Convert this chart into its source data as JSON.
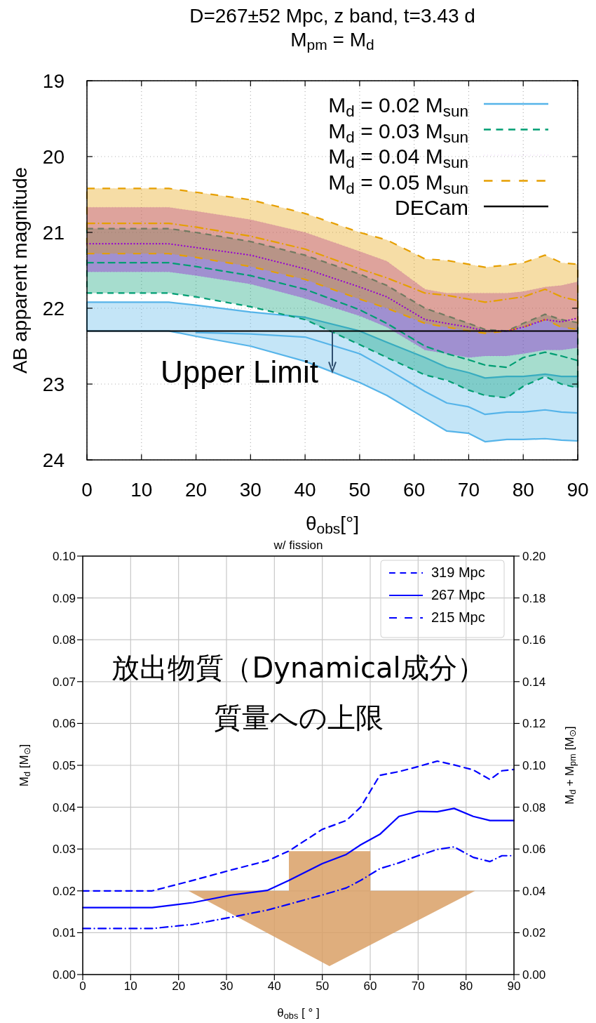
{
  "chart_data": [
    {
      "type": "line",
      "title": "D=267±52 Mpc, z band, t=3.43 d",
      "subtitle": "M$_{pm}$ = M$_{d}$",
      "xlabel": "θ$_{obs}$[°]",
      "ylabel": "AB apparent magnitude",
      "x": [
        0,
        15,
        20,
        30,
        40,
        50,
        55,
        62,
        66,
        70,
        73,
        77,
        80,
        84,
        87,
        90
      ],
      "xlim": [
        0,
        90
      ],
      "xticks": [
        0,
        10,
        20,
        30,
        40,
        50,
        60,
        70,
        80,
        90
      ],
      "ylim": [
        24,
        19
      ],
      "yticks": [
        19,
        20,
        21,
        22,
        23,
        24
      ],
      "grid": true,
      "legend": "top right",
      "series": [
        {
          "name": "M$_{d}$ = 0.02 M$_{sun}$",
          "color": "#56b4e9",
          "line_style": "solid",
          "values": [
            null,
            null,
            22.32,
            22.34,
            22.38,
            22.6,
            22.8,
            23.1,
            23.25,
            23.3,
            23.4,
            23.37,
            23.37,
            23.34,
            23.37,
            23.38
          ],
          "lower": [
            21.92,
            21.92,
            21.96,
            22.05,
            22.12,
            22.3,
            22.45,
            22.65,
            22.78,
            22.85,
            22.92,
            22.9,
            22.9,
            22.87,
            22.9,
            22.9
          ],
          "upper": [
            22.3,
            22.3,
            22.37,
            22.5,
            22.7,
            22.98,
            23.15,
            23.45,
            23.62,
            23.65,
            23.76,
            23.73,
            23.73,
            23.72,
            23.74,
            23.75
          ]
        },
        {
          "name": "M$_{d}$ = 0.03 M$_{sun}$",
          "color": "#009e73",
          "line_style": "dashed",
          "values": [
            21.4,
            21.4,
            21.45,
            21.57,
            21.75,
            22.02,
            22.2,
            22.5,
            22.6,
            22.68,
            22.75,
            22.78,
            22.65,
            22.58,
            22.63,
            22.69
          ],
          "lower": [
            20.95,
            20.95,
            21.0,
            21.12,
            21.3,
            21.55,
            21.7,
            22.0,
            22.1,
            22.2,
            22.28,
            22.3,
            22.2,
            22.08,
            22.15,
            22.19
          ],
          "upper": [
            21.8,
            21.8,
            21.85,
            21.98,
            22.15,
            22.48,
            22.65,
            22.88,
            22.95,
            23.08,
            23.15,
            23.18,
            23.03,
            22.9,
            23.0,
            23.05
          ]
        },
        {
          "name": "M$_{d}$ = 0.04 M$_{sun}$",
          "color": "#9400d3",
          "line_style": "dotted",
          "values": [
            21.15,
            21.15,
            21.2,
            21.3,
            21.48,
            21.72,
            21.85,
            22.15,
            22.2,
            22.25,
            22.3,
            22.3,
            22.25,
            22.15,
            22.18,
            22.13
          ],
          "lower": [
            20.67,
            20.67,
            20.72,
            20.83,
            21.0,
            21.25,
            21.38,
            21.75,
            21.8,
            21.8,
            21.8,
            21.8,
            21.78,
            21.72,
            21.7,
            21.65
          ],
          "upper": [
            21.52,
            21.52,
            21.57,
            21.68,
            21.87,
            22.1,
            22.25,
            22.55,
            22.6,
            22.65,
            22.63,
            22.63,
            22.6,
            22.55,
            22.55,
            22.52
          ]
        },
        {
          "name": "M$_{d}$ = 0.05 M$_{sun}$",
          "color": "#e69f00",
          "line_style": "dashdot",
          "values": [
            20.88,
            20.88,
            20.93,
            21.05,
            21.22,
            21.48,
            21.6,
            21.8,
            21.83,
            21.88,
            21.92,
            21.88,
            21.85,
            21.75,
            21.85,
            21.9
          ],
          "lower": [
            20.42,
            20.42,
            20.47,
            20.57,
            20.75,
            21.0,
            21.1,
            21.35,
            21.37,
            21.42,
            21.46,
            21.43,
            21.4,
            21.3,
            21.4,
            21.42
          ],
          "upper": [
            21.28,
            21.28,
            21.33,
            21.45,
            21.62,
            21.88,
            22.0,
            22.2,
            22.25,
            22.3,
            22.33,
            22.3,
            22.25,
            22.15,
            22.25,
            22.28
          ]
        }
      ],
      "ref_lines": [
        {
          "axis": "y",
          "value": 22.3,
          "label": "DECam",
          "color": "#000000",
          "line_style": "solid"
        }
      ],
      "annotations": [
        {
          "text": "Upper Limit",
          "x": 45,
          "y": 22.3
        }
      ]
    },
    {
      "type": "line",
      "title": "w/ fission",
      "xlabel": "θ$_{obs}$ [ ° ]",
      "ylabel": "M$_{d}$ [M$_{⊙}$]",
      "y2label": "M$_{d}$ + M$_{pm}$ [M$_{⊙}$]",
      "x": [
        0,
        14.5,
        23,
        31,
        38.5,
        43,
        50,
        55,
        58,
        62,
        66,
        70,
        74,
        77.5,
        81.5,
        85,
        87.5,
        90
      ],
      "xlim": [
        0,
        90
      ],
      "xticks": [
        0,
        10,
        20,
        30,
        40,
        50,
        60,
        70,
        80,
        90
      ],
      "ylim": [
        0,
        0.1
      ],
      "yticks": [
        {
          "value": 0,
          "label": "0.00"
        },
        {
          "value": 0.01,
          "label": "0.01"
        },
        {
          "value": 0.02,
          "label": "0.02"
        },
        {
          "value": 0.03,
          "label": "0.03"
        },
        {
          "value": 0.04,
          "label": "0.04"
        },
        {
          "value": 0.05,
          "label": "0.05"
        },
        {
          "value": 0.06,
          "label": "0.06"
        },
        {
          "value": 0.07,
          "label": "0.07"
        },
        {
          "value": 0.08,
          "label": "0.08"
        },
        {
          "value": 0.09,
          "label": "0.09"
        },
        {
          "value": 0.1,
          "label": "0.10"
        }
      ],
      "y2lim": [
        0,
        0.2
      ],
      "y2ticks": [
        {
          "value": 0,
          "label": "0.00"
        },
        {
          "value": 0.02,
          "label": "0.02"
        },
        {
          "value": 0.04,
          "label": "0.04"
        },
        {
          "value": 0.06,
          "label": "0.06"
        },
        {
          "value": 0.08,
          "label": "0.08"
        },
        {
          "value": 0.1,
          "label": "0.10"
        },
        {
          "value": 0.12,
          "label": "0.12"
        },
        {
          "value": 0.14,
          "label": "0.14"
        },
        {
          "value": 0.16,
          "label": "0.16"
        },
        {
          "value": 0.18,
          "label": "0.18"
        },
        {
          "value": 0.2,
          "label": "0.20"
        }
      ],
      "grid": true,
      "legend": "top right",
      "series": [
        {
          "name": "319 Mpc",
          "color": "#0000ff",
          "line_style": "dashed",
          "values": [
            0.02,
            0.02,
            0.0225,
            0.025,
            0.0272,
            0.0295,
            0.0347,
            0.0368,
            0.04,
            0.0476,
            0.0485,
            0.0497,
            0.051,
            0.0501,
            0.0489,
            0.0466,
            0.0487,
            0.049
          ]
        },
        {
          "name": "267 Mpc",
          "color": "#0000ff",
          "line_style": "solid",
          "values": [
            0.016,
            0.016,
            0.0172,
            0.019,
            0.0201,
            0.0225,
            0.0265,
            0.0287,
            0.031,
            0.0335,
            0.0378,
            0.039,
            0.0389,
            0.0397,
            0.0378,
            0.0368,
            0.0368,
            0.0368
          ]
        },
        {
          "name": "215 Mpc",
          "color": "#0000ff",
          "line_style": "dashdot",
          "values": [
            0.011,
            0.011,
            0.012,
            0.0137,
            0.0154,
            0.0168,
            0.019,
            0.0207,
            0.0225,
            0.0253,
            0.0267,
            0.0284,
            0.0299,
            0.0305,
            0.028,
            0.027,
            0.0284,
            0.0284
          ]
        }
      ],
      "annotations": [
        "放出物質（Dynamical成分）",
        "質量への上限"
      ]
    }
  ]
}
